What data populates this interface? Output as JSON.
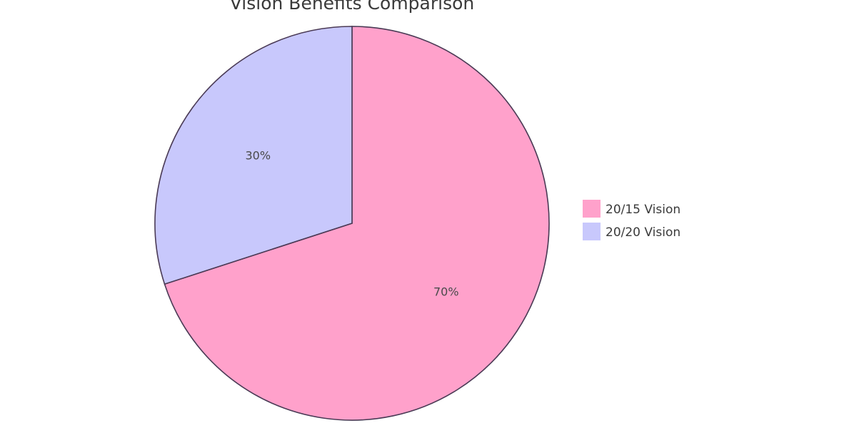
{
  "chart_data": {
    "type": "pie",
    "title": "Vision Benefits Comparison",
    "categories": [
      "20/15 Vision",
      "20/20 Vision"
    ],
    "values": [
      70,
      30
    ],
    "data_labels": [
      "70%",
      "30%"
    ],
    "colors": [
      "#ffa1cb",
      "#c8c8fc"
    ],
    "legend": {
      "position": "right",
      "entries": [
        "20/15 Vision",
        "20/20 Vision"
      ]
    }
  }
}
